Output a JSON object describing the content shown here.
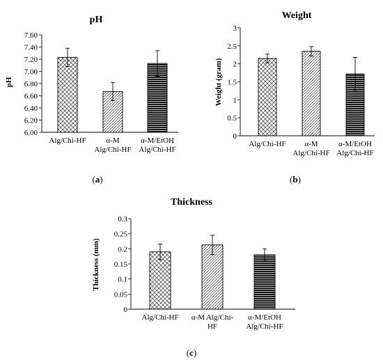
{
  "chart_data": [
    {
      "type": "bar",
      "panel_label": "a",
      "title": "pH",
      "xlabel": "",
      "ylabel": "pH",
      "ylim": [
        6.0,
        7.6
      ],
      "yticks": [
        "6.00",
        "6.20",
        "6.40",
        "6.60",
        "6.80",
        "7.00",
        "7.20",
        "7.40",
        "7.60"
      ],
      "yticks_values": [
        6.0,
        6.2,
        6.4,
        6.6,
        6.8,
        7.0,
        7.2,
        7.4,
        7.6
      ],
      "categories": [
        [
          "Alg/Chi-HF"
        ],
        [
          "α-M",
          "Alg/Chi-HF"
        ],
        [
          "α-M/EtOH",
          "Alg/Chi-HF"
        ]
      ],
      "values": [
        7.23,
        6.67,
        7.13
      ],
      "errors": [
        0.15,
        0.15,
        0.21
      ],
      "patterns": [
        "crosshatch",
        "diagonal",
        "dense-horizontal"
      ],
      "grid": false
    },
    {
      "type": "bar",
      "panel_label": "b",
      "title": "Weight",
      "xlabel": "",
      "ylabel": "Weight (gram)",
      "ylim": [
        0,
        3
      ],
      "yticks": [
        "0",
        "0.5",
        "1",
        "1.5",
        "2",
        "2.5",
        "3"
      ],
      "yticks_values": [
        0,
        0.5,
        1,
        1.5,
        2,
        2.5,
        3
      ],
      "categories": [
        [
          "Alg/Chi-HF"
        ],
        [
          "α-M",
          "Alg/Chi-HF"
        ],
        [
          "α-M/EtOH",
          "Alg/Chi-HF"
        ]
      ],
      "values": [
        2.15,
        2.35,
        1.72
      ],
      "errors": [
        0.12,
        0.13,
        0.46
      ],
      "patterns": [
        "crosshatch",
        "diagonal",
        "dense-horizontal"
      ],
      "grid": false
    },
    {
      "type": "bar",
      "panel_label": "c",
      "title": "Thickness",
      "xlabel": "",
      "ylabel": "Thickness (mm)",
      "ylim": [
        0,
        0.3
      ],
      "yticks": [
        "0",
        "0.05",
        "0.1",
        "0.15",
        "0.2",
        "0.25",
        "0.3"
      ],
      "yticks_values": [
        0,
        0.05,
        0.1,
        0.15,
        0.2,
        0.25,
        0.3
      ],
      "categories": [
        [
          "Alg/Chi-HF"
        ],
        [
          "α-M Alg/Chi-",
          "HF"
        ],
        [
          "α-M/EtOH",
          "Alg/Chi-HF"
        ]
      ],
      "values": [
        0.19,
        0.213,
        0.18
      ],
      "errors": [
        0.026,
        0.032,
        0.02
      ],
      "patterns": [
        "crosshatch",
        "diagonal",
        "dense-horizontal"
      ],
      "grid": false
    }
  ]
}
